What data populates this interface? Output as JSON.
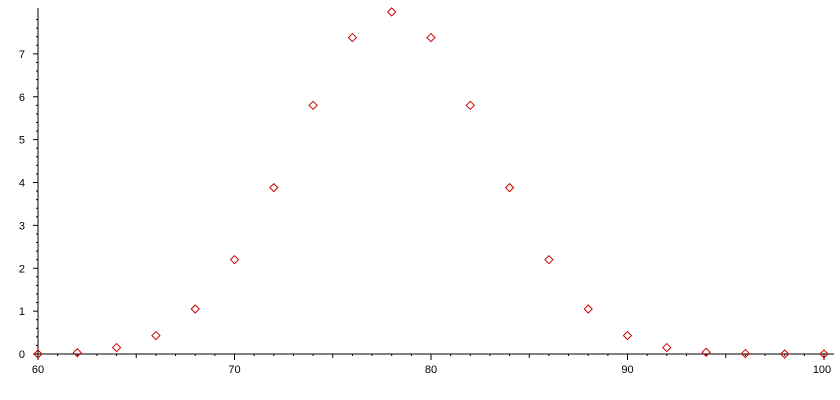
{
  "chart_data": {
    "type": "scatter",
    "title": "",
    "xlabel": "",
    "ylabel": "",
    "xlim": [
      60,
      100
    ],
    "ylim": [
      0,
      8
    ],
    "x_ticks": [
      60,
      70,
      80,
      90,
      100
    ],
    "x_tick_labels": [
      "60",
      "70",
      "80",
      "90",
      "100"
    ],
    "y_ticks": [
      0,
      1,
      2,
      3,
      4,
      5,
      6,
      7
    ],
    "y_tick_labels": [
      "0",
      "1",
      "2",
      "3",
      "4",
      "5",
      "6",
      "7"
    ],
    "grid": false,
    "legend": "none",
    "marker": "diamond",
    "series": [
      {
        "color": "#cc0000",
        "x": [
          60,
          62,
          64,
          66,
          68,
          70,
          72,
          74,
          76,
          78,
          80,
          82,
          84,
          86,
          88,
          90,
          92,
          94,
          96,
          98,
          100
        ],
        "y": [
          0.0,
          0.03,
          0.15,
          0.43,
          1.05,
          2.2,
          3.88,
          5.8,
          7.38,
          7.98,
          7.38,
          5.8,
          3.88,
          2.2,
          1.05,
          0.43,
          0.15,
          0.04,
          0.01,
          0.0,
          0.0
        ]
      }
    ]
  }
}
